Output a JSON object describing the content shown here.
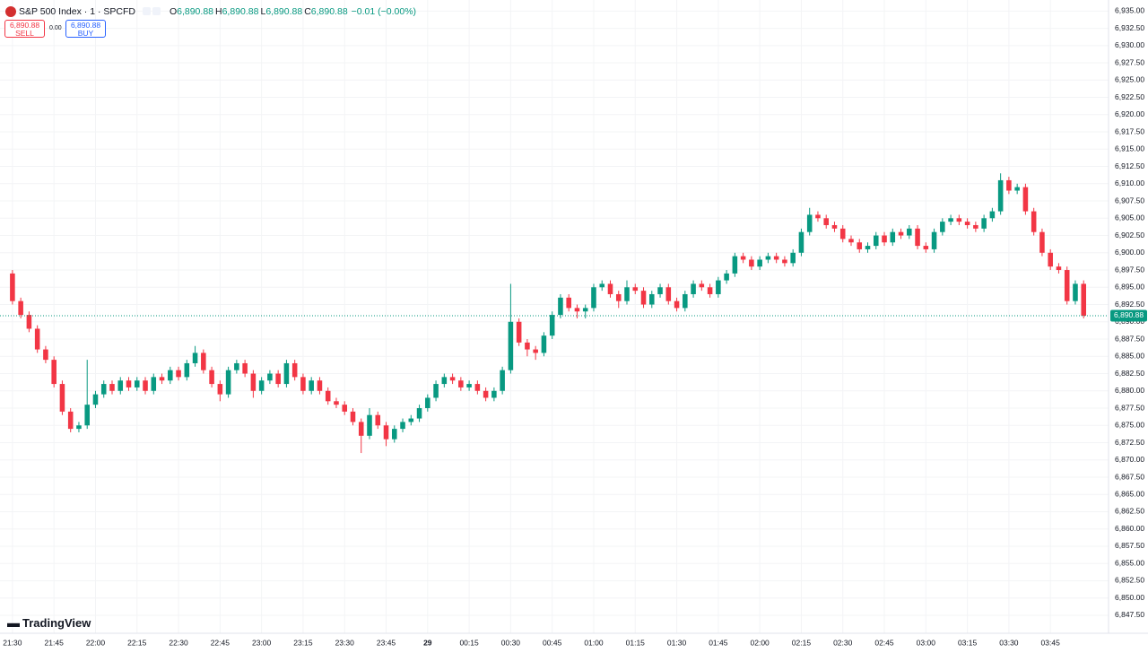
{
  "chart_data": {
    "type": "candlestick",
    "title": "S&P 500 Index · 1 · SPCFD",
    "ohlc_legend": {
      "open_key": "O",
      "open": "6,890.88",
      "high_key": "H",
      "high": "6,890.88",
      "low_key": "L",
      "low": "6,890.88",
      "close_key": "C",
      "close": "6,890.88",
      "change": "−0.01 (−0.00%)"
    },
    "trade_buttons": {
      "sell_price": "6,890.88",
      "sell": "SELL",
      "spread": "0.00",
      "buy_price": "6,890.88",
      "buy": "BUY"
    },
    "branding": "TradingView",
    "up_color": "#089981",
    "down_color": "#f23645",
    "grid": true,
    "last_price": {
      "value": 6890.88,
      "label": "6,890.88"
    },
    "xlim": [
      -4.5,
      396
    ],
    "ylim": [
      6844.9,
      6936.6
    ],
    "xticks": [
      {
        "value": 0,
        "label": "21:30"
      },
      {
        "value": 15,
        "label": "21:45"
      },
      {
        "value": 30,
        "label": "22:00"
      },
      {
        "value": 45,
        "label": "22:15"
      },
      {
        "value": 60,
        "label": "22:30"
      },
      {
        "value": 75,
        "label": "22:45"
      },
      {
        "value": 90,
        "label": "23:00"
      },
      {
        "value": 105,
        "label": "23:15"
      },
      {
        "value": 120,
        "label": "23:30"
      },
      {
        "value": 135,
        "label": "23:45"
      },
      {
        "value": 150,
        "label": "29"
      },
      {
        "value": 165,
        "label": "00:15"
      },
      {
        "value": 180,
        "label": "00:30"
      },
      {
        "value": 195,
        "label": "00:45"
      },
      {
        "value": 210,
        "label": "01:00"
      },
      {
        "value": 225,
        "label": "01:15"
      },
      {
        "value": 240,
        "label": "01:30"
      },
      {
        "value": 255,
        "label": "01:45"
      },
      {
        "value": 270,
        "label": "02:00"
      },
      {
        "value": 285,
        "label": "02:15"
      },
      {
        "value": 300,
        "label": "02:30"
      },
      {
        "value": 315,
        "label": "02:45"
      },
      {
        "value": 330,
        "label": "03:00"
      },
      {
        "value": 345,
        "label": "03:15"
      },
      {
        "value": 360,
        "label": "03:30"
      },
      {
        "value": 375,
        "label": "03:45"
      }
    ],
    "yticks": [
      {
        "value": 6847.5,
        "label": "6,847.50"
      },
      {
        "value": 6850,
        "label": "6,850.00"
      },
      {
        "value": 6852.5,
        "label": "6,852.50"
      },
      {
        "value": 6855,
        "label": "6,855.00"
      },
      {
        "value": 6857.5,
        "label": "6,857.50"
      },
      {
        "value": 6860,
        "label": "6,860.00"
      },
      {
        "value": 6862.5,
        "label": "6,862.50"
      },
      {
        "value": 6865,
        "label": "6,865.00"
      },
      {
        "value": 6867.5,
        "label": "6,867.50"
      },
      {
        "value": 6870,
        "label": "6,870.00"
      },
      {
        "value": 6872.5,
        "label": "6,872.50"
      },
      {
        "value": 6875,
        "label": "6,875.00"
      },
      {
        "value": 6877.5,
        "label": "6,877.50"
      },
      {
        "value": 6880,
        "label": "6,880.00"
      },
      {
        "value": 6882.5,
        "label": "6,882.50"
      },
      {
        "value": 6885,
        "label": "6,885.00"
      },
      {
        "value": 6887.5,
        "label": "6,887.50"
      },
      {
        "value": 6890,
        "label": "6,890.00"
      },
      {
        "value": 6892.5,
        "label": "6,892.50"
      },
      {
        "value": 6895,
        "label": "6,895.00"
      },
      {
        "value": 6897.5,
        "label": "6,897.50"
      },
      {
        "value": 6900,
        "label": "6,900.00"
      },
      {
        "value": 6902.5,
        "label": "6,902.50"
      },
      {
        "value": 6905,
        "label": "6,905.00"
      },
      {
        "value": 6907.5,
        "label": "6,907.50"
      },
      {
        "value": 6910,
        "label": "6,910.00"
      },
      {
        "value": 6912.5,
        "label": "6,912.50"
      },
      {
        "value": 6915,
        "label": "6,915.00"
      },
      {
        "value": 6917.5,
        "label": "6,917.50"
      },
      {
        "value": 6920,
        "label": "6,920.00"
      },
      {
        "value": 6922.5,
        "label": "6,922.50"
      },
      {
        "value": 6925,
        "label": "6,925.00"
      },
      {
        "value": 6927.5,
        "label": "6,927.50"
      },
      {
        "value": 6930,
        "label": "6,930.00"
      },
      {
        "value": 6932.5,
        "label": "6,932.50"
      },
      {
        "value": 6935,
        "label": "6,935.00"
      }
    ],
    "x": [
      0,
      3,
      6,
      9,
      12,
      15,
      18,
      21,
      24,
      27,
      30,
      33,
      36,
      39,
      42,
      45,
      48,
      51,
      54,
      57,
      60,
      63,
      66,
      69,
      72,
      75,
      78,
      81,
      84,
      87,
      90,
      93,
      96,
      99,
      102,
      105,
      108,
      111,
      114,
      117,
      120,
      123,
      126,
      129,
      132,
      135,
      138,
      141,
      144,
      147,
      150,
      153,
      156,
      159,
      162,
      165,
      168,
      171,
      174,
      177,
      180,
      183,
      186,
      189,
      192,
      195,
      198,
      201,
      204,
      207,
      210,
      213,
      216,
      219,
      222,
      225,
      228,
      231,
      234,
      237,
      240,
      243,
      246,
      249,
      252,
      255,
      258,
      261,
      264,
      267,
      270,
      273,
      276,
      279,
      282,
      285,
      288,
      291,
      294,
      297,
      300,
      303,
      306,
      309,
      312,
      315,
      318,
      321,
      324,
      327,
      330,
      333,
      336,
      339,
      342,
      345,
      348,
      351,
      354,
      357,
      360,
      363,
      366,
      369,
      372,
      375,
      378,
      381,
      384,
      387
    ],
    "candles": [
      [
        6897,
        6897.5,
        6892.5,
        6893
      ],
      [
        6893,
        6893.5,
        6890.5,
        6891
      ],
      [
        6891,
        6891.5,
        6888.5,
        6889
      ],
      [
        6889,
        6889.5,
        6885.5,
        6886
      ],
      [
        6886,
        6886.5,
        6884,
        6884.5
      ],
      [
        6884.5,
        6885,
        6880.5,
        6881
      ],
      [
        6881,
        6881.5,
        6876.5,
        6877
      ],
      [
        6877,
        6877.5,
        6874,
        6874.5
      ],
      [
        6874.5,
        6875.5,
        6874,
        6875
      ],
      [
        6875,
        6884.5,
        6874.5,
        6878
      ],
      [
        6878,
        6880,
        6877.5,
        6879.5
      ],
      [
        6879.5,
        6881.5,
        6879,
        6881
      ],
      [
        6881,
        6881.5,
        6879.5,
        6880
      ],
      [
        6880,
        6882,
        6879.5,
        6881.5
      ],
      [
        6881.5,
        6882,
        6880,
        6880.5
      ],
      [
        6880.5,
        6882,
        6880,
        6881.5
      ],
      [
        6881.5,
        6882,
        6879.5,
        6880
      ],
      [
        6880,
        6882.5,
        6879.5,
        6882
      ],
      [
        6882,
        6882.5,
        6881,
        6881.5
      ],
      [
        6881.5,
        6883.5,
        6881,
        6883
      ],
      [
        6883,
        6883.5,
        6881.5,
        6882
      ],
      [
        6882,
        6884.5,
        6881.5,
        6884
      ],
      [
        6884,
        6886.5,
        6883.5,
        6885.5
      ],
      [
        6885.5,
        6886,
        6882.5,
        6883
      ],
      [
        6883,
        6883.5,
        6880.5,
        6881
      ],
      [
        6881,
        6881.5,
        6878.5,
        6879.5
      ],
      [
        6879.5,
        6883.5,
        6879,
        6883
      ],
      [
        6883,
        6884.5,
        6882.5,
        6884
      ],
      [
        6884,
        6884.5,
        6882,
        6882.5
      ],
      [
        6882.5,
        6883,
        6879,
        6880
      ],
      [
        6880,
        6882,
        6879.5,
        6881.5
      ],
      [
        6881.5,
        6883,
        6881,
        6882.5
      ],
      [
        6882.5,
        6883,
        6880.5,
        6881
      ],
      [
        6881,
        6884.5,
        6880.5,
        6884
      ],
      [
        6884,
        6884.5,
        6881.5,
        6882
      ],
      [
        6882,
        6882.5,
        6879.5,
        6880
      ],
      [
        6880,
        6882,
        6879.5,
        6881.5
      ],
      [
        6881.5,
        6882,
        6879.5,
        6880
      ],
      [
        6880,
        6880.5,
        6878,
        6878.5
      ],
      [
        6878.5,
        6879,
        6877.5,
        6878
      ],
      [
        6878,
        6878.5,
        6876.5,
        6877
      ],
      [
        6877,
        6877.5,
        6875,
        6875.5
      ],
      [
        6875.5,
        6876,
        6871,
        6873.5
      ],
      [
        6873.5,
        6877.5,
        6873,
        6876.5
      ],
      [
        6876.5,
        6877,
        6874.5,
        6875
      ],
      [
        6875,
        6875.5,
        6872,
        6873
      ],
      [
        6873,
        6875,
        6872.5,
        6874.5
      ],
      [
        6874.5,
        6876,
        6874,
        6875.5
      ],
      [
        6875.5,
        6876.5,
        6875,
        6876
      ],
      [
        6876,
        6878,
        6875.5,
        6877.5
      ],
      [
        6877.5,
        6879.5,
        6877,
        6879
      ],
      [
        6879,
        6881.5,
        6878.5,
        6881
      ],
      [
        6881,
        6882.5,
        6880.5,
        6882
      ],
      [
        6882,
        6882.5,
        6881,
        6881.5
      ],
      [
        6881.5,
        6882,
        6880,
        6880.5
      ],
      [
        6880.5,
        6881.5,
        6880,
        6881
      ],
      [
        6881,
        6881.5,
        6879.5,
        6880
      ],
      [
        6880,
        6880.5,
        6878.5,
        6879
      ],
      [
        6879,
        6880.5,
        6878.5,
        6880
      ],
      [
        6880,
        6883.5,
        6879.5,
        6883
      ],
      [
        6883,
        6895.5,
        6882.5,
        6890
      ],
      [
        6890,
        6890.5,
        6886.5,
        6887
      ],
      [
        6887,
        6887.5,
        6885,
        6886
      ],
      [
        6886,
        6886.5,
        6884.5,
        6885.5
      ],
      [
        6885.5,
        6888.5,
        6885,
        6888
      ],
      [
        6888,
        6891.5,
        6887.5,
        6891
      ],
      [
        6891,
        6894,
        6890.5,
        6893.5
      ],
      [
        6893.5,
        6894,
        6891.5,
        6892
      ],
      [
        6892,
        6892.5,
        6890.5,
        6891.5
      ],
      [
        6891.5,
        6892.5,
        6890.5,
        6892
      ],
      [
        6892,
        6895.5,
        6891.5,
        6895
      ],
      [
        6895,
        6896,
        6894.5,
        6895.5
      ],
      [
        6895.5,
        6896,
        6893.5,
        6894
      ],
      [
        6894,
        6894.5,
        6892,
        6893
      ],
      [
        6893,
        6896,
        6892.5,
        6895
      ],
      [
        6895,
        6895.5,
        6894,
        6894.5
      ],
      [
        6894.5,
        6895,
        6892,
        6892.5
      ],
      [
        6892.5,
        6894.5,
        6892,
        6894
      ],
      [
        6894,
        6895.5,
        6893.5,
        6895
      ],
      [
        6895,
        6895.5,
        6892.5,
        6893
      ],
      [
        6893,
        6893.5,
        6891.5,
        6892
      ],
      [
        6892,
        6894.5,
        6891.5,
        6894
      ],
      [
        6894,
        6896,
        6893.5,
        6895.5
      ],
      [
        6895.5,
        6896,
        6894.5,
        6895
      ],
      [
        6895,
        6895.5,
        6893.5,
        6894
      ],
      [
        6894,
        6896.5,
        6893.5,
        6896
      ],
      [
        6896,
        6897.5,
        6895.5,
        6897
      ],
      [
        6897,
        6900,
        6896.5,
        6899.5
      ],
      [
        6899.5,
        6900,
        6898.5,
        6899
      ],
      [
        6899,
        6899.5,
        6897.5,
        6898
      ],
      [
        6898,
        6899.5,
        6897.5,
        6899
      ],
      [
        6899,
        6900,
        6898.5,
        6899.5
      ],
      [
        6899.5,
        6900,
        6898.5,
        6899
      ],
      [
        6899,
        6899.5,
        6898,
        6898.5
      ],
      [
        6898.5,
        6900.5,
        6898,
        6900
      ],
      [
        6900,
        6903.5,
        6899.5,
        6903
      ],
      [
        6903,
        6906.5,
        6902.5,
        6905.5
      ],
      [
        6905.5,
        6906,
        6904.5,
        6905
      ],
      [
        6905,
        6905.5,
        6903.5,
        6904
      ],
      [
        6904,
        6904.5,
        6903,
        6903.5
      ],
      [
        6903.5,
        6904,
        6901.5,
        6902
      ],
      [
        6902,
        6902.5,
        6901,
        6901.5
      ],
      [
        6901.5,
        6902,
        6900,
        6900.5
      ],
      [
        6900.5,
        6901.5,
        6900,
        6901
      ],
      [
        6901,
        6903,
        6900.5,
        6902.5
      ],
      [
        6902.5,
        6903,
        6901,
        6901.5
      ],
      [
        6901.5,
        6903.5,
        6901,
        6903
      ],
      [
        6903,
        6903.5,
        6902,
        6902.5
      ],
      [
        6902.5,
        6904,
        6902,
        6903.5
      ],
      [
        6903.5,
        6904,
        6900.5,
        6901
      ],
      [
        6901,
        6901.5,
        6900,
        6900.5
      ],
      [
        6900.5,
        6903.5,
        6900,
        6903
      ],
      [
        6903,
        6905,
        6902.5,
        6904.5
      ],
      [
        6904.5,
        6905.5,
        6904,
        6905
      ],
      [
        6905,
        6905.5,
        6904,
        6904.5
      ],
      [
        6904.5,
        6905,
        6903.5,
        6904
      ],
      [
        6904,
        6904.5,
        6903,
        6903.5
      ],
      [
        6903.5,
        6905.5,
        6903,
        6905
      ],
      [
        6905,
        6906.5,
        6904.5,
        6906
      ],
      [
        6906,
        6911.5,
        6905.5,
        6910.5
      ],
      [
        6910.5,
        6911,
        6908.5,
        6909
      ],
      [
        6909,
        6910,
        6908.5,
        6909.5
      ],
      [
        6909.5,
        6910,
        6905.5,
        6906
      ],
      [
        6906,
        6906.5,
        6902.5,
        6903
      ],
      [
        6903,
        6903.5,
        6899.5,
        6900
      ],
      [
        6900,
        6900.5,
        6897.5,
        6898
      ],
      [
        6898,
        6898.5,
        6897,
        6897.5
      ],
      [
        6897.5,
        6898,
        6892.5,
        6893
      ],
      [
        6893,
        6896,
        6892.5,
        6895.5
      ],
      [
        6895.5,
        6896,
        6890.5,
        6890.88
      ]
    ]
  }
}
